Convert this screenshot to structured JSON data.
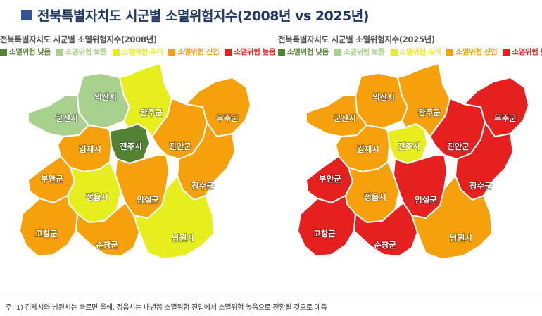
{
  "title": "전북특별자치도 시군별 소멸위험지수(2008년 vs 2025년)",
  "legend": [
    {
      "label": "소멸위험 낮음",
      "color": "#548235"
    },
    {
      "label": "소멸위험 보통",
      "color": "#a9d18e"
    },
    {
      "label": "소멸위험 주의",
      "color": "#e6ef1d"
    },
    {
      "label": "소멸위험 진입",
      "color": "#f6a00c"
    },
    {
      "label": "소멸위험 높음",
      "color": "#e6201f"
    }
  ],
  "maps": [
    {
      "subtitle": "전북특별자치도 시군별 소멸위험지수(2008년)",
      "regions": {
        "iksan": {
          "label": "익산시",
          "level": "소멸위험 보통"
        },
        "gunsan": {
          "label": "군산시",
          "level": "소멸위험 보통"
        },
        "wanju": {
          "label": "완주군",
          "level": "소멸위험 주의"
        },
        "jeonju": {
          "label": "전주시",
          "level": "소멸위험 낮음"
        },
        "gimje": {
          "label": "김제시",
          "level": "소멸위험 진입"
        },
        "jinan": {
          "label": "진안군",
          "level": "소멸위험 진입"
        },
        "muju": {
          "label": "무주군",
          "level": "소멸위험 진입"
        },
        "buan": {
          "label": "부안군",
          "level": "소멸위험 진입"
        },
        "jeongeup": {
          "label": "정읍시",
          "level": "소멸위험 주의"
        },
        "imsil": {
          "label": "임실군",
          "level": "소멸위험 진입"
        },
        "jangsu": {
          "label": "장수군",
          "level": "소멸위험 진입"
        },
        "gochang": {
          "label": "고창군",
          "level": "소멸위험 진입"
        },
        "sunchang": {
          "label": "순창군",
          "level": "소멸위험 진입"
        },
        "namwon": {
          "label": "남원시",
          "level": "소멸위험 주의"
        }
      }
    },
    {
      "subtitle": "전북특별자치도 시군별 소멸위험지수(2025년)",
      "regions": {
        "iksan": {
          "label": "익산시",
          "level": "소멸위험 진입"
        },
        "gunsan": {
          "label": "군산시",
          "level": "소멸위험 진입"
        },
        "wanju": {
          "label": "완주군",
          "level": "소멸위험 진입"
        },
        "jeonju": {
          "label": "전주시",
          "level": "소멸위험 주의"
        },
        "gimje": {
          "label": "김제시",
          "level": "소멸위험 진입"
        },
        "jinan": {
          "label": "진안군",
          "level": "소멸위험 높음"
        },
        "muju": {
          "label": "무주군",
          "level": "소멸위험 높음"
        },
        "buan": {
          "label": "부안군",
          "level": "소멸위험 높음"
        },
        "jeongeup": {
          "label": "정읍시",
          "level": "소멸위험 진입"
        },
        "imsil": {
          "label": "임실군",
          "level": "소멸위험 높음"
        },
        "jangsu": {
          "label": "장수군",
          "level": "소멸위험 높음"
        },
        "gochang": {
          "label": "고창군",
          "level": "소멸위험 높음"
        },
        "sunchang": {
          "label": "순창군",
          "level": "소멸위험 높음"
        },
        "namwon": {
          "label": "남원시",
          "level": "소멸위험 진입"
        }
      }
    }
  ],
  "footnote": "주: 1) 김제시와 남원시는 빠르면 올해, 정읍시는 내년쯤 소멸위험 진입에서 소멸위험 높음으로 전환될 것으로 예측"
}
